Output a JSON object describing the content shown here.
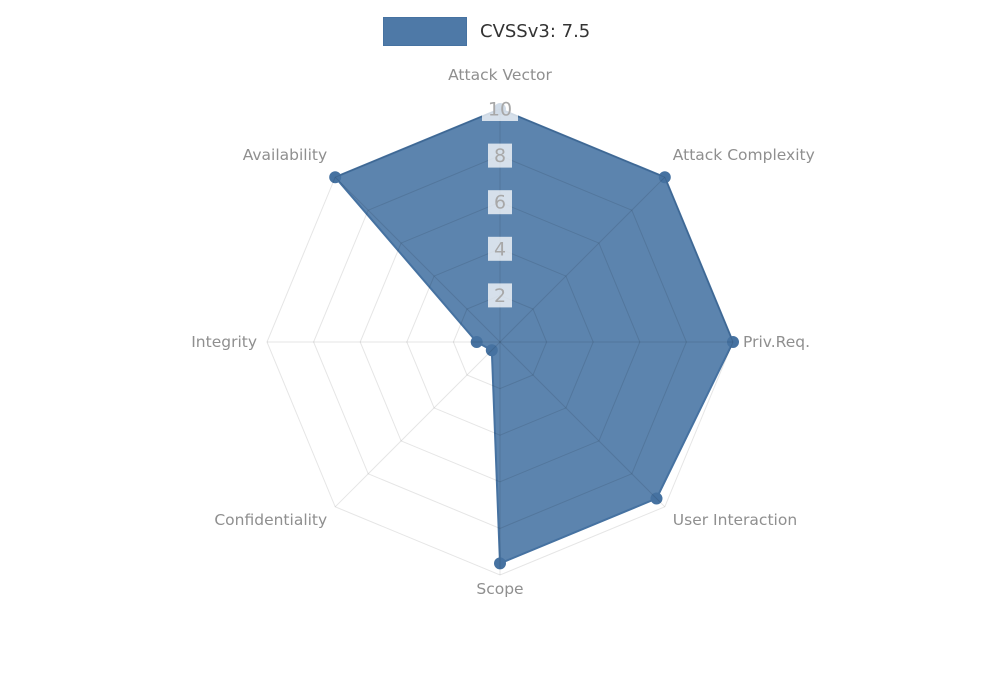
{
  "legend": {
    "label": "CVSSv3: 7.5"
  },
  "chart_data": {
    "type": "radar",
    "categories": [
      "Attack Vector",
      "Attack Complexity",
      "Priv.Req.",
      "User Interaction",
      "Scope",
      "Confidentiality",
      "Integrity",
      "Availability"
    ],
    "series": [
      {
        "name": "CVSSv3: 7.5",
        "values": [
          10,
          10,
          10,
          9.5,
          9.5,
          0.5,
          1,
          10
        ]
      }
    ],
    "ticks": [
      2,
      4,
      6,
      8,
      10
    ],
    "rmax": 10,
    "grid": true,
    "legend_position": "top",
    "colors": {
      "fill": "#4e79a7",
      "fill_opacity": 0.92,
      "stroke": "#4672a1",
      "marker": "#4672a1",
      "grid": "rgba(0,0,0,0.10)",
      "axis_label": "#8f8f8f",
      "tick_label": "#a8a8a8",
      "tick_backdrop": "rgba(255,255,255,0.75)",
      "legend_text": "#333333"
    }
  }
}
